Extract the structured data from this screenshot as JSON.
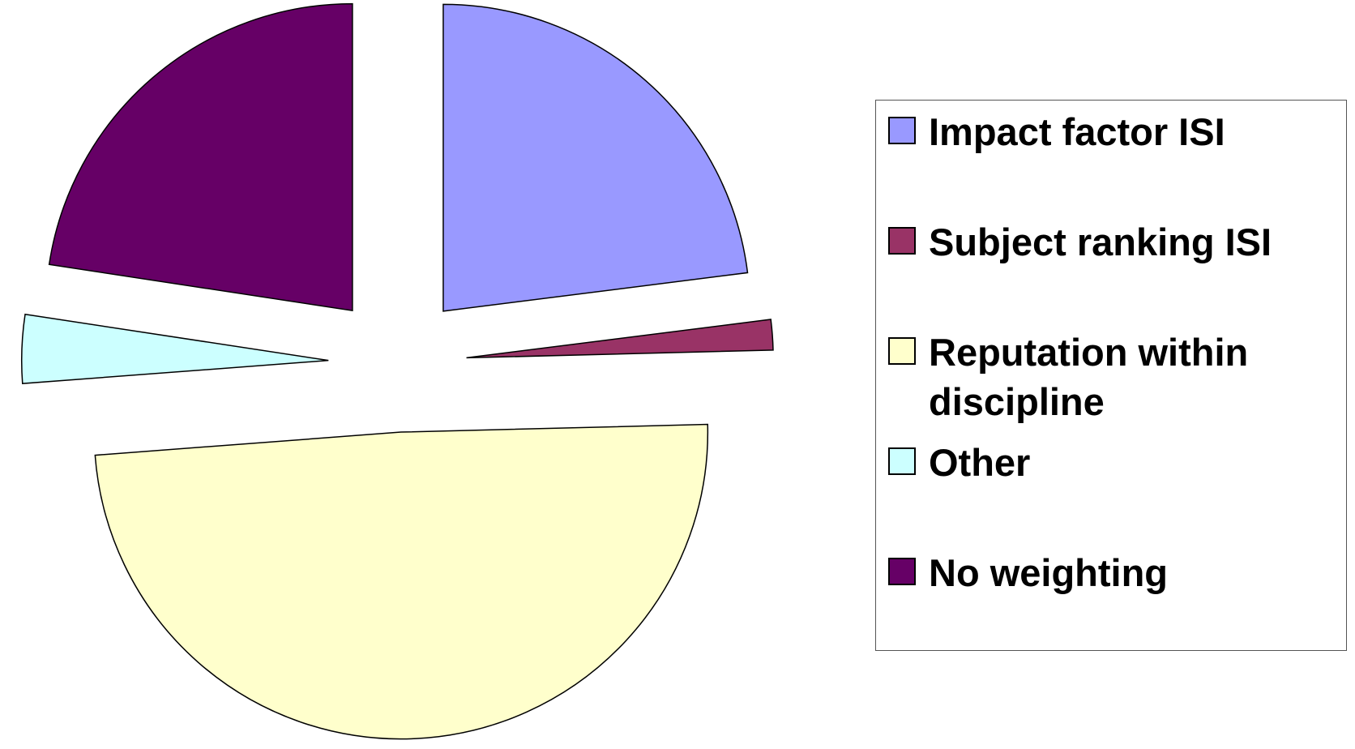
{
  "chart_data": {
    "type": "pie",
    "categories": [
      "Impact factor ISI",
      "Subject ranking ISI",
      "Reputation within discipline",
      "Other",
      "No weighting"
    ],
    "values": [
      23,
      1.6,
      49.2,
      3.6,
      22.6
    ],
    "colors": [
      "#9999ff",
      "#993366",
      "#ffffcc",
      "#ccffff",
      "#660066"
    ],
    "legend": "right"
  }
}
